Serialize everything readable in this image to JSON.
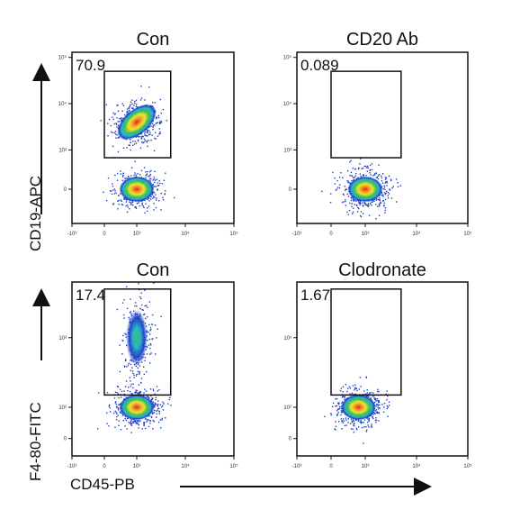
{
  "figure": {
    "row_ylabels": [
      "CD19-APC",
      "F4-80-FITC"
    ],
    "xlabel": "CD45-PB",
    "x_tick_labels": [
      "-10³",
      "0",
      "10³",
      "10⁴",
      "10⁵"
    ],
    "y_tick_labels_top": [
      "10⁵",
      "10⁴",
      "10³",
      "0"
    ],
    "y_tick_labels_bottom": [
      "10³",
      "10²",
      "0"
    ]
  },
  "chart_data": [
    {
      "type": "scatter",
      "title": "Con",
      "gate_percent": "70.9",
      "xlabel": "",
      "ylabel": "CD19-APC",
      "populations": [
        {
          "name": "",
          "x": 1000,
          "y": 4000,
          "density": "high"
        },
        {
          "name": "",
          "x": 1000,
          "y": 0,
          "density": "medium"
        }
      ],
      "gate": {
        "x_range": [
          0,
          5000
        ],
        "y_range": [
          800,
          50000
        ]
      }
    },
    {
      "type": "scatter",
      "title": "CD20 Ab",
      "gate_percent": "0.089",
      "xlabel": "",
      "ylabel": "",
      "populations": [
        {
          "name": "",
          "x": 1000,
          "y": 0,
          "density": "high"
        }
      ],
      "gate": {
        "x_range": [
          0,
          5000
        ],
        "y_range": [
          800,
          50000
        ]
      }
    },
    {
      "type": "scatter",
      "title": "Con",
      "gate_percent": "17.4",
      "xlabel": "CD45-PB",
      "ylabel": "F4-80-FITC",
      "populations": [
        {
          "name": "",
          "x": 1000,
          "y": 100,
          "density": "high"
        },
        {
          "name": "",
          "x": 1000,
          "y": 1000,
          "density": "low"
        }
      ],
      "gate": {
        "x_range": [
          0,
          5000
        ],
        "y_range": [
          150,
          5000
        ]
      }
    },
    {
      "type": "scatter",
      "title": "Clodronate",
      "gate_percent": "1.67",
      "xlabel": "",
      "ylabel": "",
      "populations": [
        {
          "name": "",
          "x": 800,
          "y": 100,
          "density": "high"
        }
      ],
      "gate": {
        "x_range": [
          0,
          5000
        ],
        "y_range": [
          150,
          5000
        ]
      }
    }
  ]
}
